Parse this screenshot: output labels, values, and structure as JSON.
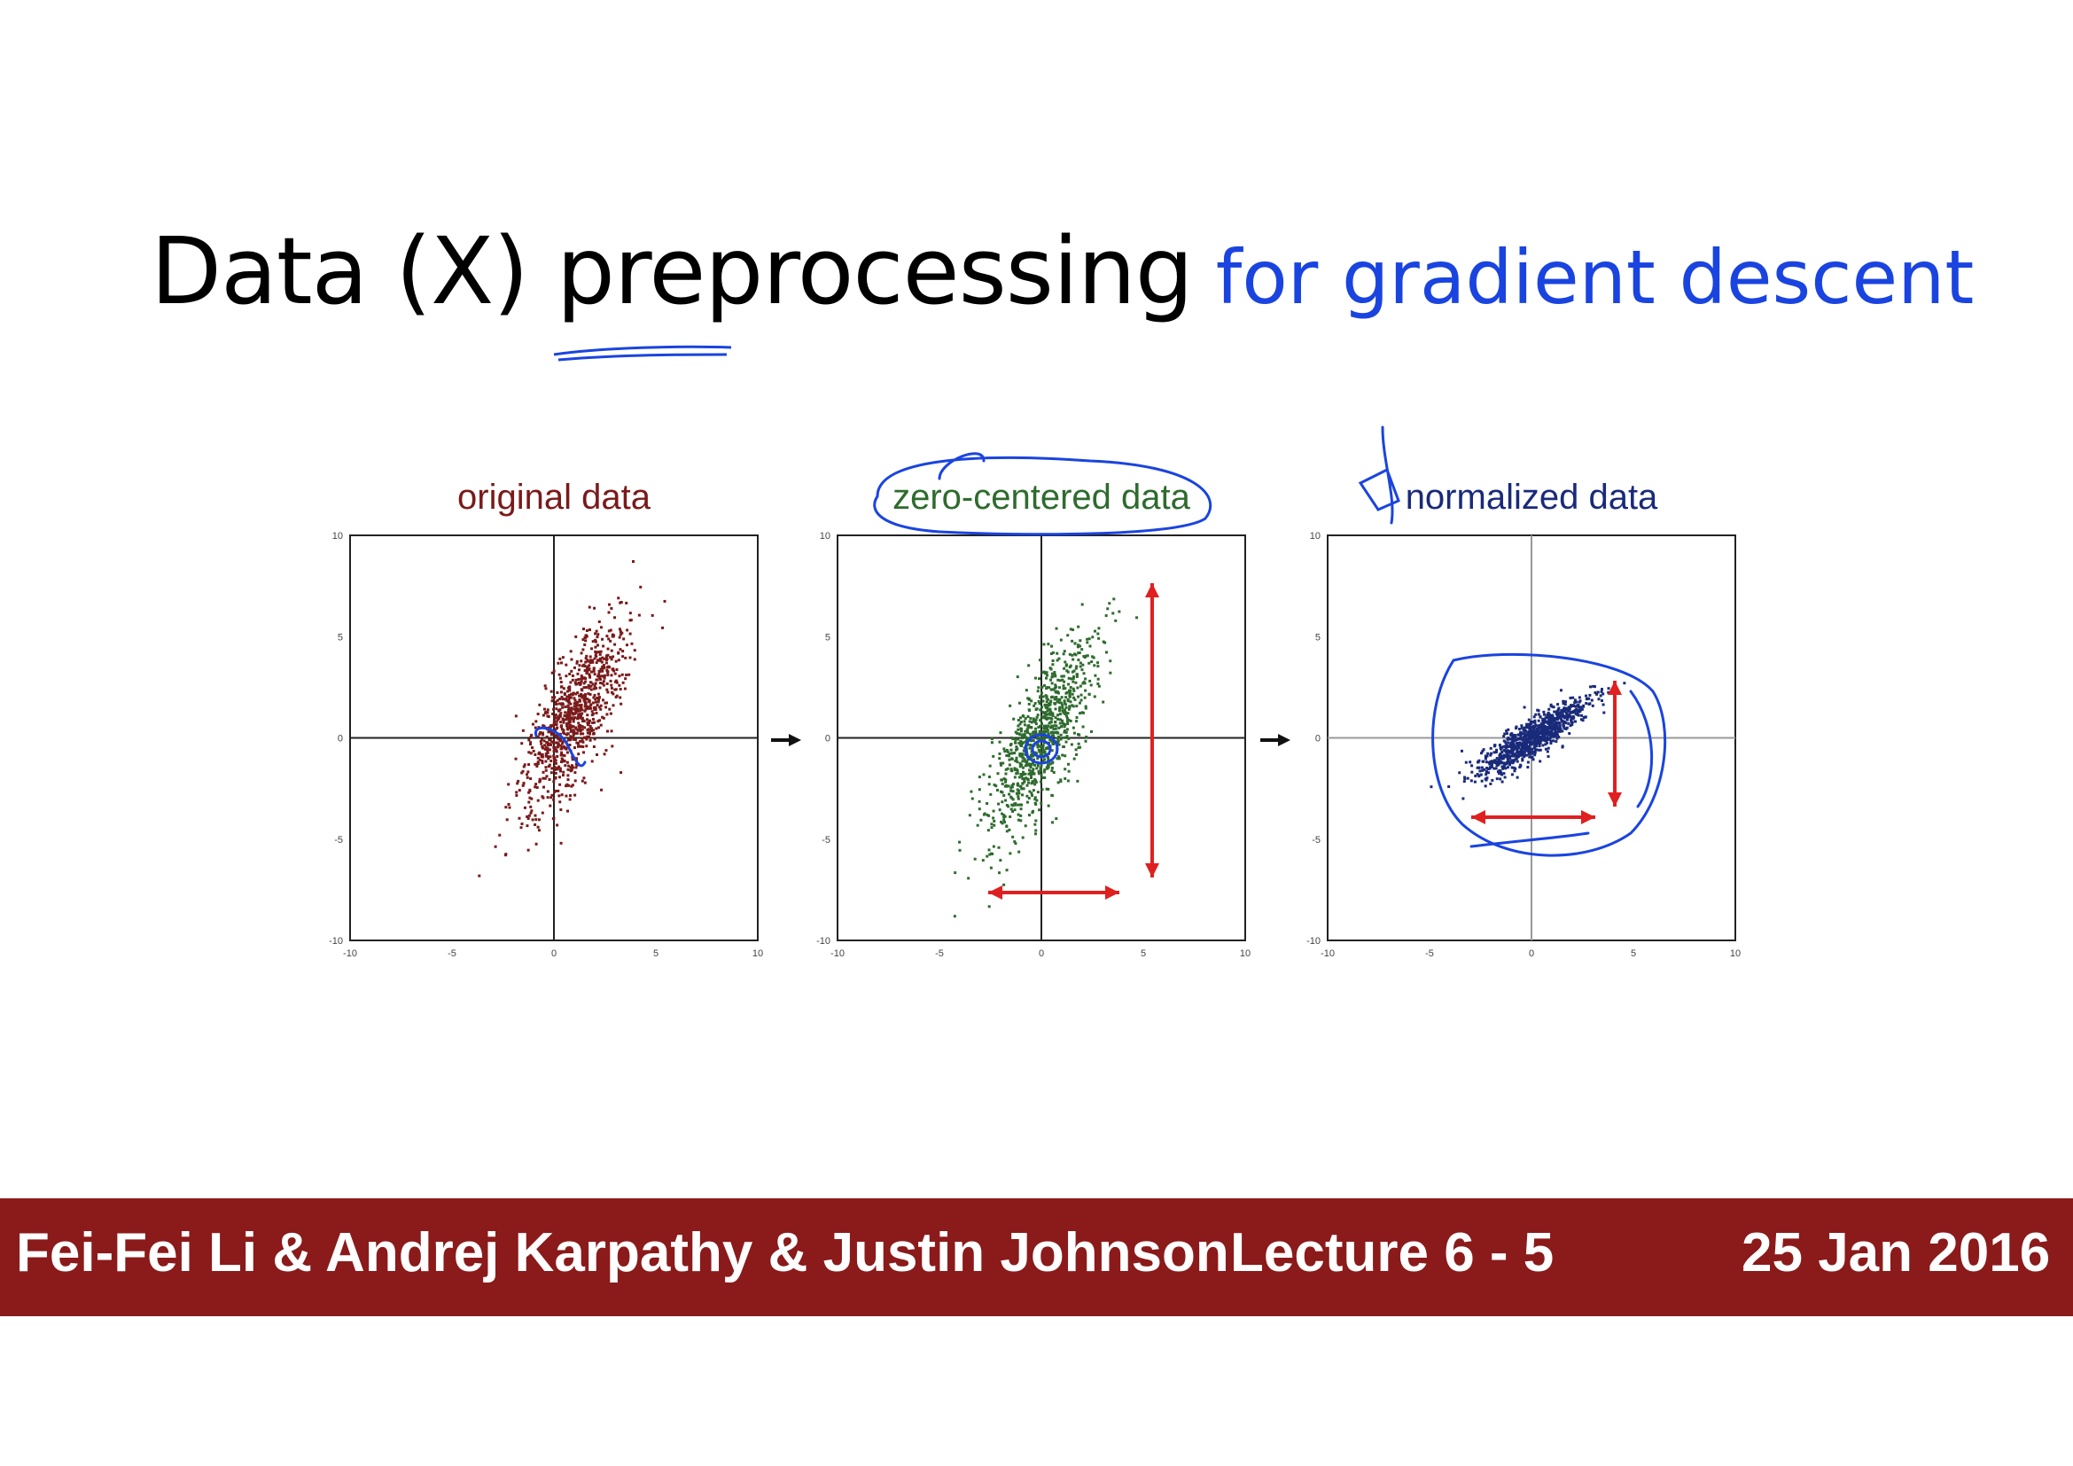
{
  "slide": {
    "title": "Data (X) preprocessing",
    "title_annotation": "for gradient descent"
  },
  "chart_data": [
    {
      "type": "scatter",
      "title": "original data",
      "color": "#7a1a1a",
      "xlim": [
        -10,
        10
      ],
      "ylim": [
        -10,
        10
      ],
      "x_ticks": [
        "-10",
        "-5",
        "0",
        "5",
        "10"
      ],
      "y_ticks": [
        "10",
        "5",
        "0",
        "-5",
        "-10"
      ],
      "grid": true,
      "point_cloud": {
        "center": [
          1,
          1
        ],
        "std_major": 2.6,
        "std_minor": 0.8,
        "angle_deg": 65
      }
    },
    {
      "type": "scatter",
      "title": "zero-centered data",
      "color": "#2e6b2e",
      "xlim": [
        -10,
        10
      ],
      "ylim": [
        -10,
        10
      ],
      "x_ticks": [
        "-10",
        "-5",
        "0",
        "5",
        "10"
      ],
      "y_ticks": [
        "10",
        "5",
        "0",
        "-5",
        "-10"
      ],
      "grid": true,
      "point_cloud": {
        "center": [
          0,
          0
        ],
        "std_major": 2.6,
        "std_minor": 0.8,
        "angle_deg": 65
      }
    },
    {
      "type": "scatter",
      "title": "normalized data",
      "color": "#1a2a7a",
      "xlim": [
        -10,
        10
      ],
      "ylim": [
        -10,
        10
      ],
      "x_ticks": [
        "-10",
        "-5",
        "0",
        "5",
        "10"
      ],
      "y_ticks": [
        "10",
        "5",
        "0",
        "-5",
        "-10"
      ],
      "grid": true,
      "point_cloud": {
        "center": [
          0,
          0
        ],
        "std_major": 1.6,
        "std_minor": 0.4,
        "angle_deg": 35
      }
    }
  ],
  "annotation_colors": {
    "ink": "#1a44e0",
    "range_arrow": "#e02020"
  },
  "footer": {
    "authors": "Fei-Fei Li & Andrej Karpathy & Justin Johnson",
    "lecture": "Lecture 6 -   5",
    "date": "25 Jan 2016",
    "background": "#8b1a1a"
  }
}
